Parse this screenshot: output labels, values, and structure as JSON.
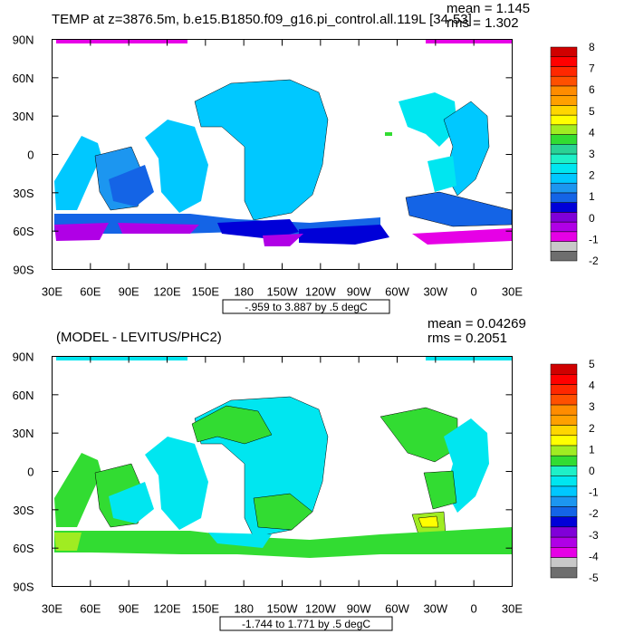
{
  "colors": {
    "top_scale": [
      "#6e6e6e",
      "#c8c8c8",
      "#e600e6",
      "#b000e6",
      "#8000d8",
      "#0000d8",
      "#1464e6",
      "#1c96f0",
      "#00c8ff",
      "#00e6f0",
      "#1ef0c8",
      "#2ad296",
      "#32dc32",
      "#a0ec22",
      "#ffff00",
      "#ffd600",
      "#ffa000",
      "#ff8c00",
      "#ff5000",
      "#ff2800",
      "#ff0000",
      "#d00000"
    ],
    "bottom_scale": [
      "#6e6e6e",
      "#c8c8c8",
      "#e600e6",
      "#b000e6",
      "#8000d8",
      "#0000d8",
      "#1464e6",
      "#1c96f0",
      "#00c8ff",
      "#00e6f0",
      "#1ef0c8",
      "#32dc32",
      "#a0ec22",
      "#ffff00",
      "#ffd600",
      "#ffa000",
      "#ff8c00",
      "#ff5000",
      "#ff2800",
      "#ff0000",
      "#d00000"
    ]
  },
  "chart_data": [
    {
      "type": "heatmap",
      "title": "TEMP at z=3876.5m, b.e15.B1850.f09_g16.pi_control.all.119L [34-53]",
      "stats": {
        "mean": "mean = 1.145",
        "rms": "rms = 1.302"
      },
      "contour_info": "-.959 to 3.887 by .5 degC",
      "x_ticks": [
        "30E",
        "60E",
        "90E",
        "120E",
        "150E",
        "180",
        "150W",
        "120W",
        "90W",
        "60W",
        "30W",
        "0",
        "30E"
      ],
      "y_ticks": [
        "90N",
        "60N",
        "30N",
        "0",
        "30S",
        "60S",
        "90S"
      ],
      "colorbar_labels": [
        "8",
        "7",
        "6",
        "5",
        "4",
        "3",
        "2",
        "1",
        "0",
        "-1",
        "-2"
      ],
      "xlim": [
        30,
        390
      ],
      "ylim": [
        -90,
        90
      ]
    },
    {
      "type": "heatmap",
      "title": "(MODEL - LEVITUS/PHC2)",
      "stats": {
        "mean": "mean = 0.04269",
        "rms": "rms = 0.2051"
      },
      "contour_info": "-1.744 to 1.771 by .5 degC",
      "x_ticks": [
        "30E",
        "60E",
        "90E",
        "120E",
        "150E",
        "180",
        "150W",
        "120W",
        "90W",
        "60W",
        "30W",
        "0",
        "30E"
      ],
      "y_ticks": [
        "90N",
        "60N",
        "30N",
        "0",
        "30S",
        "60S",
        "90S"
      ],
      "colorbar_labels": [
        "5",
        "4",
        "3",
        "2",
        "1",
        "0",
        "-1",
        "-2",
        "-3",
        "-4",
        "-5"
      ],
      "xlim": [
        30,
        390
      ],
      "ylim": [
        -90,
        90
      ]
    }
  ]
}
